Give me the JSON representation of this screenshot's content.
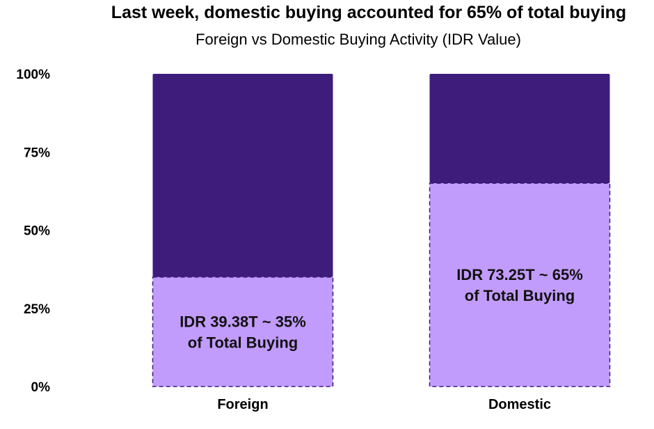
{
  "chart_data": {
    "type": "bar",
    "stacked": true,
    "normalized": true,
    "title": "Last week, domestic buying accounted for 65% of total buying",
    "subtitle": "Foreign vs Domestic Buying Activity (IDR Value)",
    "xlabel": "",
    "ylabel": "",
    "ylim": [
      0,
      100
    ],
    "y_ticks": [
      "0%",
      "25%",
      "50%",
      "75%",
      "100%"
    ],
    "grid": false,
    "categories": [
      "Foreign",
      "Domestic"
    ],
    "values": [
      35,
      65
    ],
    "remainder_values": [
      65,
      35
    ],
    "data_labels": [
      [
        "IDR 39.38T ~ 35%",
        "of Total Buying"
      ],
      [
        "IDR 73.25T ~ 65%",
        "of Total Buying"
      ]
    ],
    "colors": {
      "highlight": "#c29cfc",
      "remainder": "#3e1c7c",
      "dash": "#3e1c7c"
    }
  }
}
